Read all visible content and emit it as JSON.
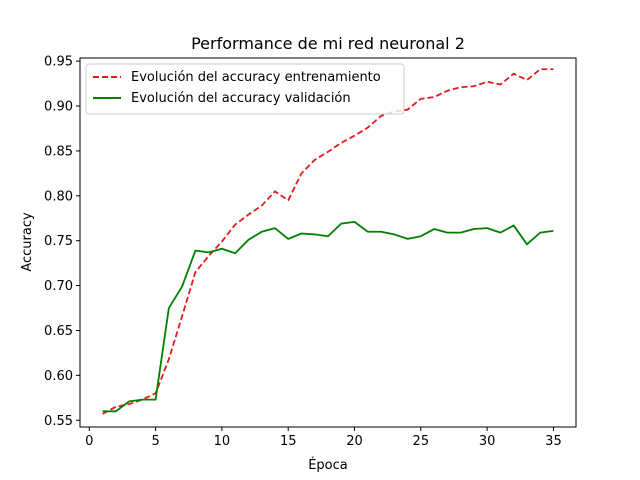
{
  "chart_data": {
    "type": "line",
    "title": "Performance de mi red neuronal 2",
    "xlabel": "Época",
    "ylabel": "Accuracy",
    "xlim": [
      -0.7,
      36.7
    ],
    "ylim": [
      0.5425,
      0.9535
    ],
    "xticks": [
      0,
      5,
      10,
      15,
      20,
      25,
      30,
      35
    ],
    "yticks": [
      0.55,
      0.6,
      0.65,
      0.7,
      0.75,
      0.8,
      0.85,
      0.9,
      0.95
    ],
    "ytick_labels": [
      "0.55",
      "0.60",
      "0.65",
      "0.70",
      "0.75",
      "0.80",
      "0.85",
      "0.90",
      "0.95"
    ],
    "grid": false,
    "legend_position": "upper-left",
    "x": [
      1,
      2,
      3,
      4,
      5,
      6,
      7,
      8,
      9,
      10,
      11,
      12,
      13,
      14,
      15,
      16,
      17,
      18,
      19,
      20,
      21,
      22,
      23,
      24,
      25,
      26,
      27,
      28,
      29,
      30,
      31,
      32,
      33,
      34,
      35
    ],
    "series": [
      {
        "name": "Evolución del accuracy entrenamiento",
        "color": "#e41a1c",
        "dash": "dashed",
        "values": [
          0.557,
          0.565,
          0.568,
          0.573,
          0.58,
          0.618,
          0.666,
          0.715,
          0.733,
          0.749,
          0.768,
          0.779,
          0.789,
          0.805,
          0.795,
          0.825,
          0.84,
          0.849,
          0.859,
          0.867,
          0.876,
          0.889,
          0.894,
          0.896,
          0.908,
          0.91,
          0.917,
          0.921,
          0.922,
          0.927,
          0.924,
          0.936,
          0.929,
          0.941,
          0.941
        ]
      },
      {
        "name": "Evolución del accuracy validación",
        "color": "#008000",
        "dash": "solid",
        "values": [
          0.56,
          0.56,
          0.571,
          0.573,
          0.573,
          0.675,
          0.699,
          0.739,
          0.737,
          0.741,
          0.736,
          0.751,
          0.76,
          0.764,
          0.752,
          0.758,
          0.757,
          0.755,
          0.769,
          0.771,
          0.76,
          0.76,
          0.757,
          0.752,
          0.755,
          0.763,
          0.759,
          0.759,
          0.763,
          0.764,
          0.759,
          0.767,
          0.746,
          0.759,
          0.761
        ]
      }
    ]
  }
}
